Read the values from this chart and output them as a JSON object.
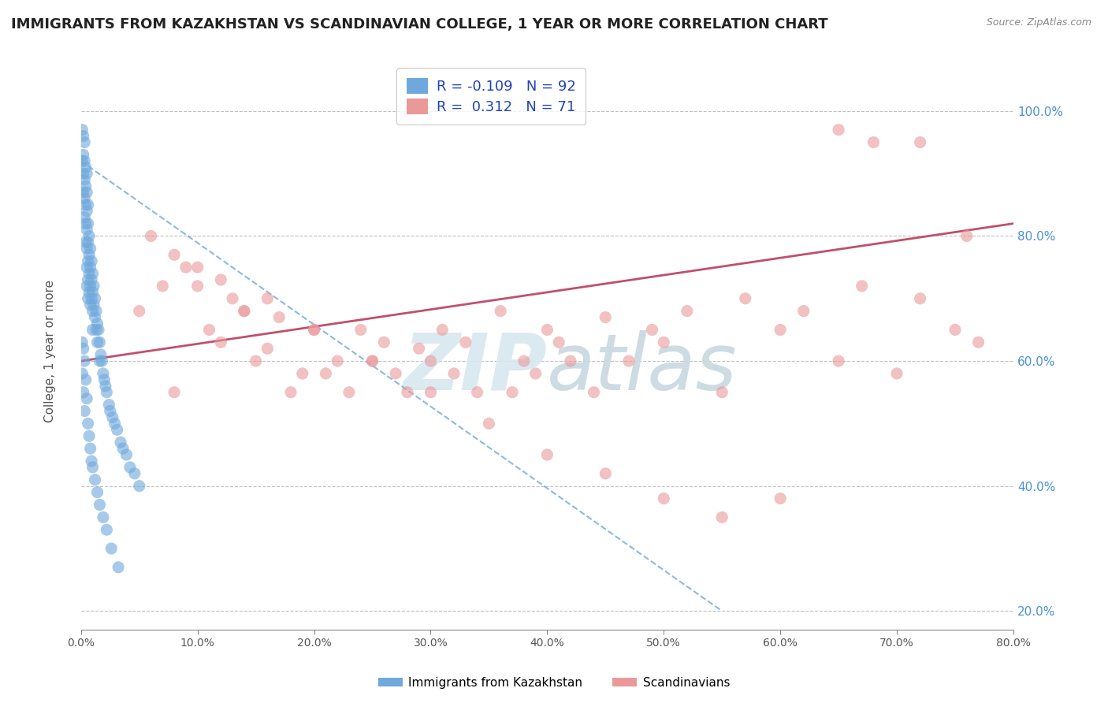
{
  "title": "IMMIGRANTS FROM KAZAKHSTAN VS SCANDINAVIAN COLLEGE, 1 YEAR OR MORE CORRELATION CHART",
  "source": "Source: ZipAtlas.com",
  "xlabel": "",
  "ylabel": "College, 1 year or more",
  "xlim": [
    0.0,
    0.8
  ],
  "ylim": [
    0.17,
    1.08
  ],
  "xticks": [
    0.0,
    0.1,
    0.2,
    0.3,
    0.4,
    0.5,
    0.6,
    0.7,
    0.8
  ],
  "yticks": [
    0.2,
    0.4,
    0.6,
    0.8,
    1.0
  ],
  "xtick_labels": [
    "0.0%",
    "10.0%",
    "20.0%",
    "30.0%",
    "40.0%",
    "50.0%",
    "60.0%",
    "70.0%",
    "80.0%"
  ],
  "ytick_labels": [
    "20.0%",
    "40.0%",
    "60.0%",
    "80.0%",
    "100.0%"
  ],
  "blue_R": -0.109,
  "blue_N": 92,
  "pink_R": 0.312,
  "pink_N": 71,
  "blue_color": "#6fa8dc",
  "pink_color": "#ea9999",
  "blue_label": "Immigrants from Kazakhstan",
  "pink_label": "Scandinavians",
  "blue_trend_color": "#6fa8dc",
  "pink_trend_color": "#c0506a",
  "blue_x": [
    0.001,
    0.001,
    0.002,
    0.002,
    0.002,
    0.002,
    0.003,
    0.003,
    0.003,
    0.003,
    0.003,
    0.004,
    0.004,
    0.004,
    0.004,
    0.004,
    0.005,
    0.005,
    0.005,
    0.005,
    0.005,
    0.005,
    0.005,
    0.006,
    0.006,
    0.006,
    0.006,
    0.006,
    0.006,
    0.007,
    0.007,
    0.007,
    0.007,
    0.008,
    0.008,
    0.008,
    0.008,
    0.009,
    0.009,
    0.009,
    0.01,
    0.01,
    0.01,
    0.01,
    0.011,
    0.011,
    0.012,
    0.012,
    0.013,
    0.013,
    0.014,
    0.014,
    0.015,
    0.016,
    0.016,
    0.017,
    0.018,
    0.019,
    0.02,
    0.021,
    0.022,
    0.024,
    0.025,
    0.027,
    0.029,
    0.031,
    0.034,
    0.036,
    0.039,
    0.042,
    0.046,
    0.05,
    0.001,
    0.001,
    0.002,
    0.002,
    0.003,
    0.003,
    0.004,
    0.005,
    0.006,
    0.007,
    0.008,
    0.009,
    0.01,
    0.012,
    0.014,
    0.016,
    0.019,
    0.022,
    0.026,
    0.032
  ],
  "blue_y": [
    0.97,
    0.92,
    0.96,
    0.93,
    0.9,
    0.87,
    0.95,
    0.92,
    0.89,
    0.86,
    0.83,
    0.91,
    0.88,
    0.85,
    0.82,
    0.79,
    0.9,
    0.87,
    0.84,
    0.81,
    0.78,
    0.75,
    0.72,
    0.85,
    0.82,
    0.79,
    0.76,
    0.73,
    0.7,
    0.8,
    0.77,
    0.74,
    0.71,
    0.78,
    0.75,
    0.72,
    0.69,
    0.76,
    0.73,
    0.7,
    0.74,
    0.71,
    0.68,
    0.65,
    0.72,
    0.69,
    0.7,
    0.67,
    0.68,
    0.65,
    0.66,
    0.63,
    0.65,
    0.63,
    0.6,
    0.61,
    0.6,
    0.58,
    0.57,
    0.56,
    0.55,
    0.53,
    0.52,
    0.51,
    0.5,
    0.49,
    0.47,
    0.46,
    0.45,
    0.43,
    0.42,
    0.4,
    0.63,
    0.58,
    0.62,
    0.55,
    0.6,
    0.52,
    0.57,
    0.54,
    0.5,
    0.48,
    0.46,
    0.44,
    0.43,
    0.41,
    0.39,
    0.37,
    0.35,
    0.33,
    0.3,
    0.27
  ],
  "pink_x": [
    0.05,
    0.07,
    0.08,
    0.09,
    0.1,
    0.11,
    0.12,
    0.13,
    0.14,
    0.15,
    0.16,
    0.17,
    0.18,
    0.19,
    0.2,
    0.21,
    0.22,
    0.23,
    0.24,
    0.25,
    0.26,
    0.27,
    0.28,
    0.29,
    0.3,
    0.31,
    0.32,
    0.33,
    0.34,
    0.36,
    0.37,
    0.38,
    0.39,
    0.4,
    0.41,
    0.42,
    0.44,
    0.45,
    0.47,
    0.49,
    0.5,
    0.52,
    0.55,
    0.57,
    0.6,
    0.62,
    0.65,
    0.67,
    0.7,
    0.72,
    0.75,
    0.76,
    0.77,
    0.06,
    0.08,
    0.1,
    0.12,
    0.14,
    0.16,
    0.2,
    0.25,
    0.3,
    0.35,
    0.4,
    0.45,
    0.5,
    0.55,
    0.6,
    0.65,
    0.68,
    0.72
  ],
  "pink_y": [
    0.68,
    0.72,
    0.55,
    0.75,
    0.72,
    0.65,
    0.63,
    0.7,
    0.68,
    0.6,
    0.62,
    0.67,
    0.55,
    0.58,
    0.65,
    0.58,
    0.6,
    0.55,
    0.65,
    0.6,
    0.63,
    0.58,
    0.55,
    0.62,
    0.6,
    0.65,
    0.58,
    0.63,
    0.55,
    0.68,
    0.55,
    0.6,
    0.58,
    0.65,
    0.63,
    0.6,
    0.55,
    0.67,
    0.6,
    0.65,
    0.63,
    0.68,
    0.55,
    0.7,
    0.65,
    0.68,
    0.6,
    0.72,
    0.58,
    0.7,
    0.65,
    0.8,
    0.63,
    0.8,
    0.77,
    0.75,
    0.73,
    0.68,
    0.7,
    0.65,
    0.6,
    0.55,
    0.5,
    0.45,
    0.42,
    0.38,
    0.35,
    0.38,
    0.97,
    0.95,
    0.95
  ],
  "blue_trend_x0": 0.0,
  "blue_trend_y0": 0.92,
  "blue_trend_x1": 0.55,
  "blue_trend_y1": 0.2,
  "pink_trend_x0": 0.0,
  "pink_trend_y0": 0.6,
  "pink_trend_x1": 0.8,
  "pink_trend_y1": 0.82
}
